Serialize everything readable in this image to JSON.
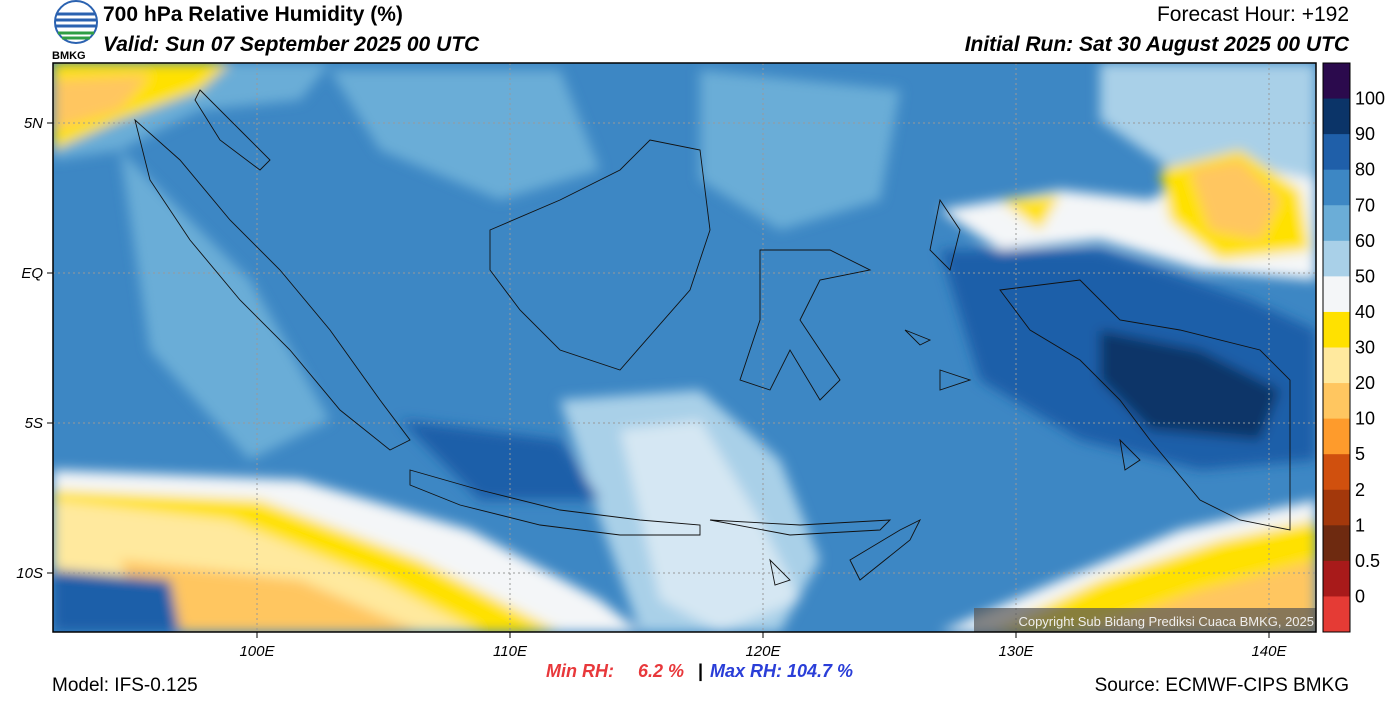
{
  "header": {
    "logo_text": "BMKG",
    "title": "700 hPa Relative Humidity (%)",
    "valid": "Valid: Sun 07 September 2025 00 UTC",
    "forecast_hour": "Forecast Hour: +192",
    "initial_run": "Initial Run: Sat 30 August 2025 00 UTC"
  },
  "map": {
    "lat_labels": [
      "5N",
      "EQ",
      "5S",
      "10S"
    ],
    "lon_labels": [
      "100E",
      "110E",
      "120E",
      "130E",
      "140E"
    ],
    "copyright": "Copyright Sub Bidang Prediksi Cuaca BMKG, 2025"
  },
  "colorbar": {
    "labels": [
      "100",
      "90",
      "80",
      "70",
      "60",
      "50",
      "40",
      "30",
      "20",
      "10",
      "5",
      "2",
      "1",
      "0.5",
      "0"
    ],
    "colors": [
      "#2b0a4d",
      "#0b3468",
      "#1f5fa9",
      "#3d87c4",
      "#6badd7",
      "#a9d0e8",
      "#f4f6f8",
      "#ffe100",
      "#ffe99e",
      "#ffc660",
      "#fe9b2c",
      "#d0500e",
      "#a3380b",
      "#6e2a10",
      "#a81a1a",
      "#e53b35"
    ]
  },
  "footer": {
    "model": "Model: IFS-0.125",
    "min_label": "Min RH:",
    "min_value": "6.2 %",
    "separator": "|",
    "max_text": "Max RH: 104.7 %",
    "source": "Source: ECMWF-CIPS BMKG"
  }
}
